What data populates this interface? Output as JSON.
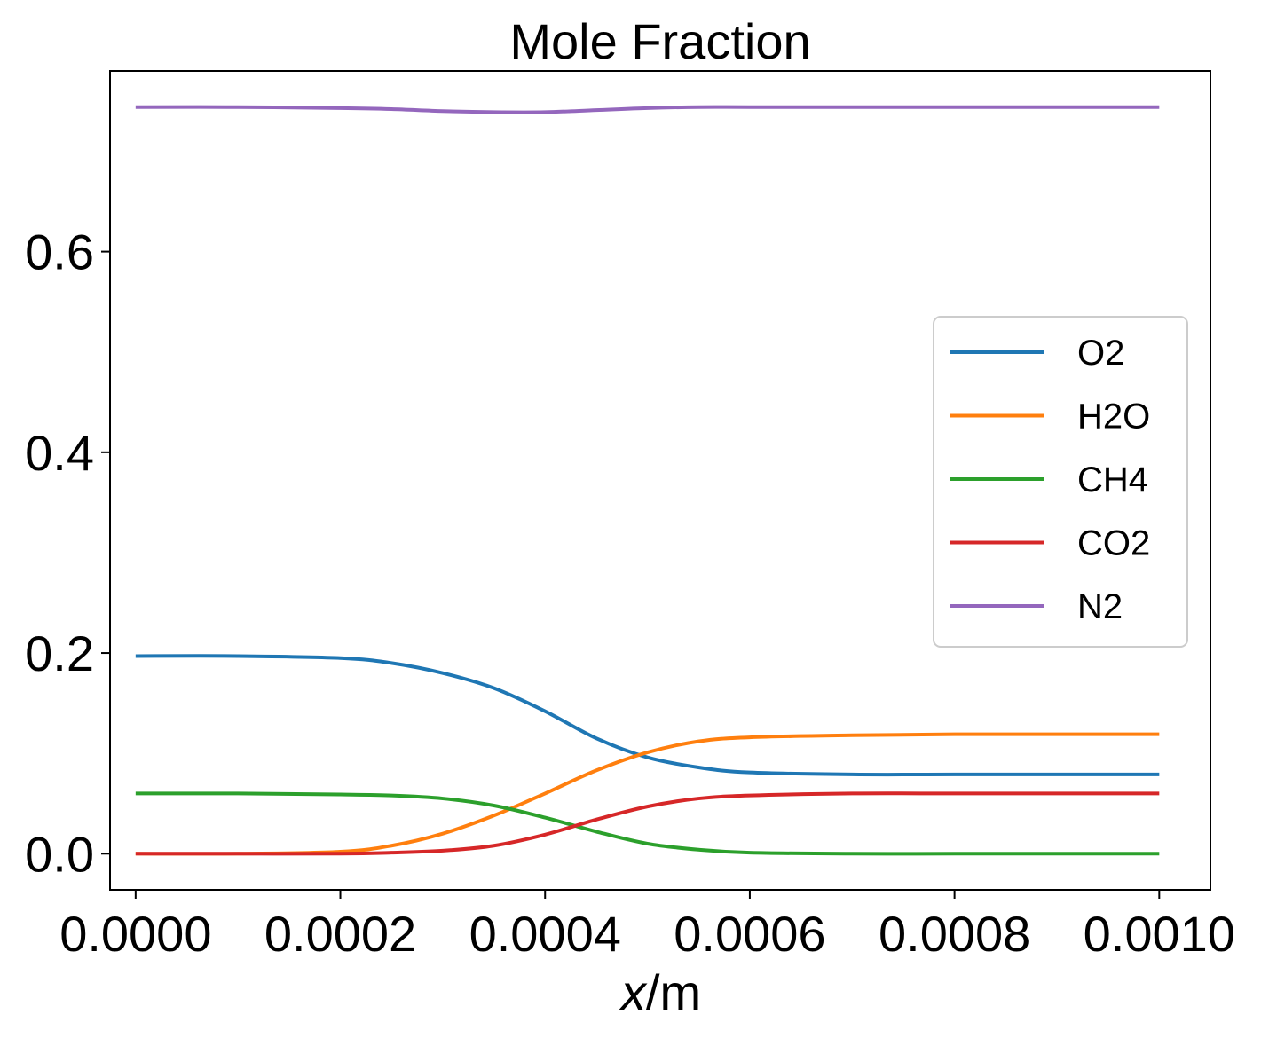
{
  "chart_data": {
    "type": "line",
    "title": "Mole Fraction",
    "xlabel_var": "x",
    "xlabel_unit": "/m",
    "ylabel": "",
    "xlim": [
      -2.5e-05,
      0.00105
    ],
    "ylim": [
      -0.036,
      0.78
    ],
    "xticks": [
      0.0,
      0.0002,
      0.0004,
      0.0006,
      0.0008,
      0.001
    ],
    "xtick_labels": [
      "0.0000",
      "0.0002",
      "0.0004",
      "0.0006",
      "0.0008",
      "0.0010"
    ],
    "yticks": [
      0.0,
      0.2,
      0.4,
      0.6
    ],
    "ytick_labels": [
      "0.0",
      "0.2",
      "0.4",
      "0.6"
    ],
    "grid": false,
    "legend_position": "center-right",
    "x": [
      0,
      0.0001,
      0.0002,
      0.00025,
      0.0003,
      0.00035,
      0.0004,
      0.00045,
      0.0005,
      0.00055,
      0.0006,
      0.0007,
      0.0008,
      0.0009,
      0.001
    ],
    "series": [
      {
        "name": "O2",
        "color": "#1f77b4",
        "values": [
          0.197,
          0.197,
          0.195,
          0.19,
          0.18,
          0.165,
          0.142,
          0.115,
          0.096,
          0.086,
          0.081,
          0.079,
          0.079,
          0.079,
          0.079
        ]
      },
      {
        "name": "H2O",
        "color": "#ff7f0e",
        "values": [
          0.0,
          0.0,
          0.002,
          0.008,
          0.02,
          0.038,
          0.06,
          0.083,
          0.101,
          0.112,
          0.116,
          0.118,
          0.119,
          0.119,
          0.119
        ]
      },
      {
        "name": "CH4",
        "color": "#2ca02c",
        "values": [
          0.06,
          0.06,
          0.059,
          0.058,
          0.055,
          0.048,
          0.036,
          0.022,
          0.01,
          0.004,
          0.001,
          0.0,
          0.0,
          0.0,
          0.0
        ]
      },
      {
        "name": "CO2",
        "color": "#d62728",
        "values": [
          0.0,
          0.0,
          0.0,
          0.001,
          0.003,
          0.008,
          0.019,
          0.034,
          0.047,
          0.055,
          0.058,
          0.06,
          0.06,
          0.06,
          0.06
        ]
      },
      {
        "name": "N2",
        "color": "#9467bd",
        "values": [
          0.744,
          0.744,
          0.743,
          0.742,
          0.74,
          0.739,
          0.739,
          0.741,
          0.743,
          0.744,
          0.744,
          0.744,
          0.744,
          0.744,
          0.744
        ]
      }
    ]
  }
}
